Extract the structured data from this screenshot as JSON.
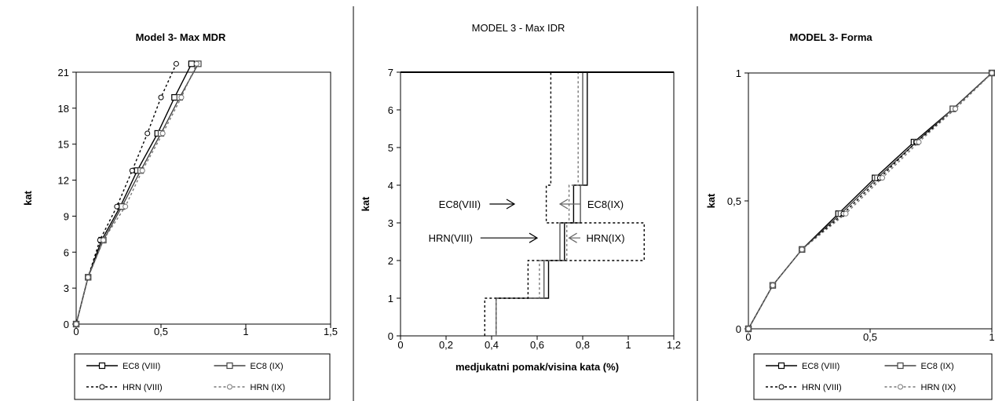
{
  "chart_data": [
    {
      "type": "line",
      "title": "Model 3- Max MDR",
      "xlabel": "",
      "ylabel": "kat",
      "xlim": [
        0,
        1.5
      ],
      "ylim": [
        0,
        21
      ],
      "x_ticks": [
        "0",
        "0,5",
        "1",
        "1,5"
      ],
      "y_ticks": [
        "0",
        "3",
        "6",
        "9",
        "12",
        "15",
        "18",
        "21"
      ],
      "legend_position": "bottom",
      "series": [
        {
          "name": "EC8 (VIII)",
          "style": "solid",
          "marker": "square",
          "color": "#000000",
          "points": [
            [
              0,
              0
            ],
            [
              0.07,
              3.9
            ],
            [
              0.15,
              7
            ],
            [
              0.26,
              9.8
            ],
            [
              0.36,
              12.8
            ],
            [
              0.48,
              15.9
            ],
            [
              0.58,
              18.9
            ],
            [
              0.68,
              21.7
            ]
          ]
        },
        {
          "name": "EC8 (IX)",
          "style": "solid",
          "marker": "square",
          "color": "#444444",
          "points": [
            [
              0,
              0
            ],
            [
              0.07,
              3.9
            ],
            [
              0.16,
              7
            ],
            [
              0.27,
              9.8
            ],
            [
              0.38,
              12.8
            ],
            [
              0.5,
              15.9
            ],
            [
              0.61,
              18.9
            ],
            [
              0.72,
              21.7
            ]
          ]
        },
        {
          "name": "HRN (VIII)",
          "style": "dotted",
          "marker": "circle",
          "color": "#000000",
          "points": [
            [
              0,
              0
            ],
            [
              0.07,
              3.9
            ],
            [
              0.14,
              7
            ],
            [
              0.24,
              9.8
            ],
            [
              0.33,
              12.8
            ],
            [
              0.42,
              15.9
            ],
            [
              0.5,
              18.9
            ],
            [
              0.59,
              21.7
            ]
          ]
        },
        {
          "name": "HRN (IX)",
          "style": "dotted",
          "marker": "circle",
          "color": "#777777",
          "points": [
            [
              0,
              0
            ],
            [
              0.07,
              3.9
            ],
            [
              0.16,
              7
            ],
            [
              0.29,
              9.8
            ],
            [
              0.39,
              12.8
            ],
            [
              0.51,
              15.9
            ],
            [
              0.62,
              18.9
            ],
            [
              0.71,
              21.7
            ]
          ]
        }
      ]
    },
    {
      "type": "line",
      "title": "MODEL 3 - Max IDR",
      "xlabel": "medjukatni pomak/visina kata (%)",
      "ylabel": "kat",
      "xlim": [
        0,
        1.2
      ],
      "ylim": [
        0,
        7
      ],
      "x_ticks": [
        "0",
        "0,2",
        "0,4",
        "0,6",
        "0,8",
        "1",
        "1,2"
      ],
      "y_ticks": [
        "0",
        "1",
        "2",
        "3",
        "4",
        "5",
        "6",
        "7"
      ],
      "annotations": [
        {
          "text": "EC8(VIII)",
          "at": [
            0.26,
            3.5
          ],
          "arrow_to": [
            0.5,
            3.5
          ]
        },
        {
          "text": "EC8(IX)",
          "at": [
            0.9,
            3.5
          ],
          "arrow_to": [
            0.7,
            3.5
          ]
        },
        {
          "text": "HRN(VIII)",
          "at": [
            0.22,
            2.6
          ],
          "arrow_to": [
            0.6,
            2.6
          ]
        },
        {
          "text": "HRN(IX)",
          "at": [
            0.9,
            2.6
          ],
          "arrow_to": [
            0.74,
            2.6
          ]
        }
      ],
      "series": [
        {
          "name": "EC8 (VIII)",
          "style": "solid",
          "color": "#000000",
          "levels": [
            [
              0,
              1,
              0.42
            ],
            [
              1,
              2,
              0.65
            ],
            [
              2,
              3,
              0.72
            ],
            [
              3,
              4,
              0.76
            ],
            [
              4,
              7,
              0.82
            ]
          ]
        },
        {
          "name": "EC8 (IX)",
          "style": "solid",
          "color": "#555555",
          "levels": [
            [
              0,
              1,
              0.42
            ],
            [
              1,
              2,
              0.63
            ],
            [
              2,
              3,
              0.7
            ],
            [
              3,
              4,
              0.79
            ],
            [
              4,
              7,
              0.8
            ]
          ]
        },
        {
          "name": "HRN (VIII)",
          "style": "dotted",
          "color": "#000000",
          "levels": [
            [
              0,
              1,
              0.37
            ],
            [
              1,
              2,
              0.56
            ],
            [
              2,
              3,
              1.07
            ],
            [
              3,
              4,
              0.64
            ],
            [
              4,
              7,
              0.66
            ]
          ]
        },
        {
          "name": "HRN (IX)",
          "style": "dotted",
          "color": "#777777",
          "levels": [
            [
              0,
              1,
              0.42
            ],
            [
              1,
              2,
              0.61
            ],
            [
              2,
              3,
              0.73
            ],
            [
              3,
              4,
              0.74
            ],
            [
              4,
              7,
              0.78
            ]
          ]
        }
      ]
    },
    {
      "type": "line",
      "title": "MODEL 3- Forma",
      "xlabel": "",
      "ylabel": "kat",
      "xlim": [
        0,
        1
      ],
      "ylim": [
        0,
        1
      ],
      "x_ticks": [
        "0",
        "0,5",
        "1"
      ],
      "y_ticks": [
        "0",
        "0,5",
        "1"
      ],
      "legend_position": "bottom",
      "series": [
        {
          "name": "EC8 (VIII)",
          "style": "solid",
          "marker": "square",
          "color": "#000000",
          "points": [
            [
              0,
              0
            ],
            [
              0.1,
              0.17
            ],
            [
              0.22,
              0.31
            ],
            [
              0.37,
              0.45
            ],
            [
              0.52,
              0.59
            ],
            [
              0.68,
              0.73
            ],
            [
              0.84,
              0.86
            ],
            [
              1,
              1
            ]
          ]
        },
        {
          "name": "EC8 (IX)",
          "style": "solid",
          "marker": "square",
          "color": "#444444",
          "points": [
            [
              0,
              0
            ],
            [
              0.1,
              0.17
            ],
            [
              0.22,
              0.31
            ],
            [
              0.38,
              0.45
            ],
            [
              0.53,
              0.59
            ],
            [
              0.69,
              0.73
            ],
            [
              0.84,
              0.86
            ],
            [
              1,
              1
            ]
          ]
        },
        {
          "name": "HRN (VIII)",
          "style": "dotted",
          "marker": "circle",
          "color": "#000000",
          "points": [
            [
              0,
              0
            ],
            [
              0.1,
              0.17
            ],
            [
              0.22,
              0.31
            ],
            [
              0.39,
              0.45
            ],
            [
              0.54,
              0.59
            ],
            [
              0.69,
              0.73
            ],
            [
              0.85,
              0.86
            ],
            [
              1,
              1
            ]
          ]
        },
        {
          "name": "HRN (IX)",
          "style": "dotted",
          "marker": "circle",
          "color": "#777777",
          "points": [
            [
              0,
              0
            ],
            [
              0.1,
              0.17
            ],
            [
              0.22,
              0.31
            ],
            [
              0.4,
              0.45
            ],
            [
              0.55,
              0.59
            ],
            [
              0.7,
              0.73
            ],
            [
              0.85,
              0.86
            ],
            [
              1,
              1
            ]
          ]
        }
      ]
    }
  ]
}
